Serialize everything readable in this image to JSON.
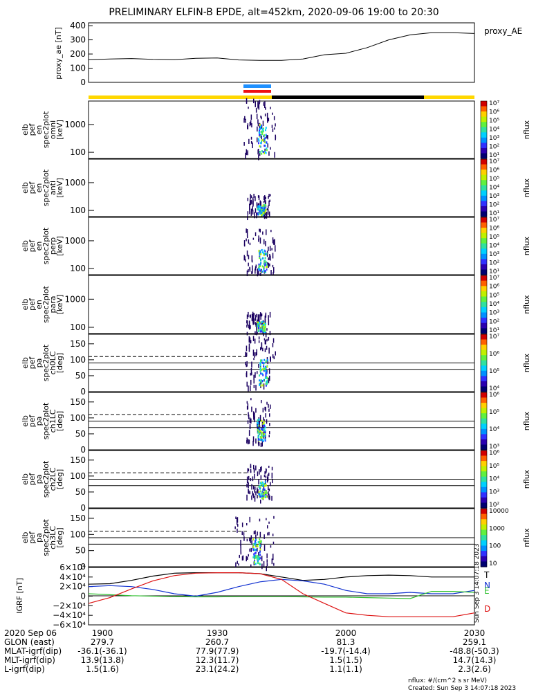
{
  "title": "PRELIMINARY ELFIN-B EPDE, alt=452km, 2020-09-06 19:00 to 20:30",
  "proxy_ae_legend": "proxy_AE",
  "colors": {
    "bar_yellow": "#ffd700",
    "bar_black": "#000000",
    "bar_blue": "#1e90ff",
    "bar_red": "#ee1111",
    "grf_T": "#000000",
    "grf_N": "#1030d0",
    "grf_E": "#30c030",
    "grf_D": "#dd1111"
  },
  "colorbars": [
    {
      "label": "nflux",
      "ticks": [
        "10⁷",
        "10⁶",
        "10⁵",
        "10⁴",
        "10³",
        "10²",
        "10¹"
      ]
    },
    {
      "label": "nflux",
      "ticks": [
        "10⁷",
        "10⁶",
        "10⁵",
        "10⁴",
        "10³",
        "10²",
        "10¹"
      ]
    },
    {
      "label": "nflux",
      "ticks": [
        "10⁷",
        "10⁶",
        "10⁵",
        "10⁴",
        "10³",
        "10²",
        "10¹"
      ]
    },
    {
      "label": "nflux",
      "ticks": [
        "10⁷",
        "10⁶",
        "10⁵",
        "10⁴",
        "10³",
        "10²",
        "10¹"
      ]
    },
    {
      "label": "nflux",
      "ticks": [
        "10⁷",
        "10⁶",
        "10⁵",
        "10⁴"
      ]
    },
    {
      "label": "nflux",
      "ticks": [
        "10⁶",
        "10⁵",
        "10⁴",
        "10³"
      ]
    },
    {
      "label": "nflux",
      "ticks": [
        "10⁶",
        "10⁵",
        "10⁴",
        "10³",
        "10²"
      ]
    },
    {
      "label": "nflux",
      "ticks": [
        "10000",
        "1000",
        "100",
        "10"
      ]
    }
  ],
  "footer": {
    "rows": [
      {
        "label": "2020 Sep 06",
        "values": [
          "1900",
          "1930",
          "2000",
          "2030"
        ]
      },
      {
        "label": "GLON (east)",
        "values": [
          "279.7",
          "260.7",
          "81.3",
          "259.1"
        ]
      },
      {
        "label": "MLAT-igrf(dip)",
        "values": [
          "-36.1(-36.1)",
          "77.9(77.9)",
          "-19.7(-14.4)",
          "-48.8(-50.3)"
        ]
      },
      {
        "label": "MLT-igrf(dip)",
        "values": [
          "13.9(13.8)",
          "12.3(11.7)",
          "1.5(1.5)",
          "14.7(14.3)"
        ]
      },
      {
        "label": "L-igrf(dip)",
        "values": [
          "1.5(1.6)",
          "23.1(24.2)",
          "1.1(1.1)",
          "2.3(2.6)"
        ]
      }
    ],
    "units_note": "nflux: #/(cm^2 s sr MeV)",
    "created": "Created: Sun Sep  3 14:07:18 2023",
    "side_stamp": "Sun Sep  3 14:07:18 2023"
  },
  "chart_data": [
    {
      "type": "line",
      "ylabel": "proxy_ae [nT]",
      "yticks": [
        "400",
        "300",
        "200",
        "100",
        "0"
      ],
      "ylim": [
        0,
        420
      ],
      "xlim": [
        0,
        90
      ],
      "x": [
        0,
        5,
        10,
        15,
        20,
        25,
        30,
        35,
        40,
        45,
        50,
        55,
        60,
        65,
        70,
        75,
        80,
        85,
        90
      ],
      "series": [
        {
          "name": "proxy_AE",
          "values": [
            160,
            165,
            168,
            162,
            160,
            170,
            172,
            158,
            155,
            155,
            165,
            195,
            205,
            245,
            300,
            335,
            350,
            350,
            345
          ]
        }
      ]
    },
    {
      "type": "heatmap",
      "ylabel": "elb pef en spec2plot omni [keV]",
      "yticks": [
        "1000",
        "100"
      ],
      "ylog": true
    },
    {
      "type": "heatmap",
      "ylabel": "elb pef en spec2plot anti [keV]",
      "yticks": [
        "1000",
        "100"
      ],
      "ylog": true
    },
    {
      "type": "heatmap",
      "ylabel": "elb pef en spec2plot perp [keV]",
      "yticks": [
        "1000",
        "100"
      ],
      "ylog": true
    },
    {
      "type": "heatmap",
      "ylabel": "elb pef en spec2plot para [keV]",
      "yticks": [
        "1000",
        "100"
      ],
      "ylog": true
    },
    {
      "type": "heatmap",
      "ylabel": "elb pef pa spec2plot ch0LC [deg]",
      "yticks": [
        "150",
        "100",
        "50",
        "0"
      ],
      "ylim": [
        0,
        180
      ]
    },
    {
      "type": "heatmap",
      "ylabel": "elb pef pa spec2plot ch1LC [deg]",
      "yticks": [
        "150",
        "100",
        "50",
        "0"
      ],
      "ylim": [
        0,
        180
      ]
    },
    {
      "type": "heatmap",
      "ylabel": "elb pef pa spec2plot ch2LC [deg]",
      "yticks": [
        "150",
        "100",
        "50",
        "0"
      ],
      "ylim": [
        0,
        180
      ]
    },
    {
      "type": "heatmap",
      "ylabel": "elb pef pa spec2plot ch3LC [deg]",
      "yticks": [
        "150",
        "100",
        "50",
        "0"
      ],
      "ylim": [
        0,
        180
      ]
    },
    {
      "type": "line",
      "ylabel": "IGRF [nT]",
      "yticks": [
        "6×10⁴",
        "4×10⁴",
        "2×10⁴",
        "0",
        "−2×10⁴",
        "−4×10⁴",
        "−6×10⁴"
      ],
      "ylim": [
        -60000,
        60000
      ],
      "xlim": [
        0,
        90
      ],
      "x": [
        0,
        5,
        10,
        15,
        20,
        25,
        30,
        35,
        40,
        45,
        50,
        55,
        60,
        65,
        70,
        75,
        80,
        85,
        90
      ],
      "series": [
        {
          "name": "T",
          "values": [
            25000,
            26000,
            33000,
            42000,
            48000,
            49000,
            49000,
            49000,
            47000,
            40000,
            33000,
            35000,
            40000,
            43000,
            44000,
            43000,
            40000,
            40000,
            40000
          ]
        },
        {
          "name": "N",
          "values": [
            20000,
            22000,
            20000,
            14000,
            5000,
            0,
            8000,
            20000,
            30000,
            35000,
            32000,
            25000,
            12000,
            5000,
            5000,
            8000,
            5000,
            5000,
            12000
          ]
        },
        {
          "name": "E",
          "values": [
            5000,
            3000,
            1000,
            0,
            -1000,
            -1500,
            -1500,
            -1000,
            -1000,
            -1000,
            -1500,
            -2000,
            -2000,
            -3000,
            -4000,
            -5000,
            10000,
            10000,
            8000
          ]
        },
        {
          "name": "D",
          "values": [
            -15000,
            -3000,
            15000,
            32000,
            43000,
            48000,
            49000,
            49000,
            47000,
            35000,
            5000,
            -15000,
            -35000,
            -40000,
            -43000,
            -43000,
            -43000,
            -43000,
            -35000
          ]
        }
      ]
    }
  ]
}
